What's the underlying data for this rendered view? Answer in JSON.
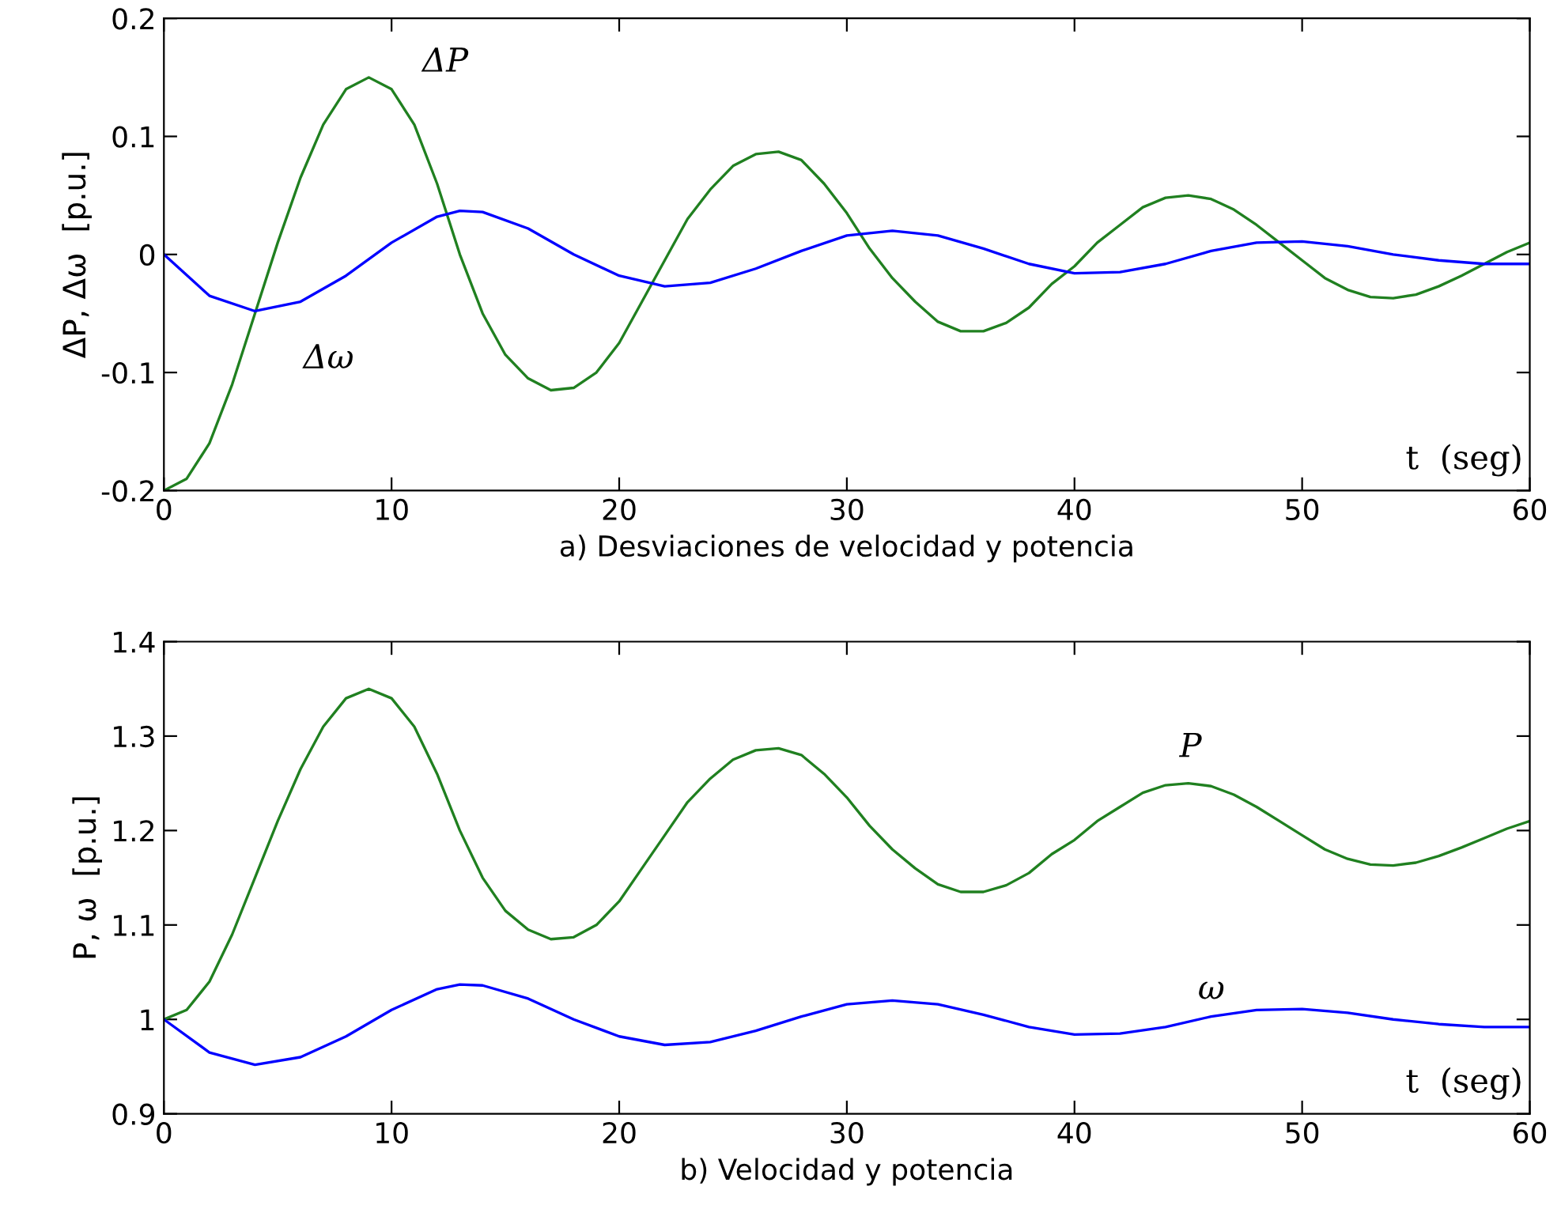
{
  "chart_data": [
    {
      "type": "line",
      "xlabel": "a) Desviaciones de velocidad y potencia",
      "ylabel": "ΔP, Δω  [p.u.]",
      "xlim": [
        0,
        60
      ],
      "ylim": [
        -0.2,
        0.2
      ],
      "xticks": [
        0,
        10,
        20,
        30,
        40,
        50,
        60
      ],
      "yticks": [
        -0.2,
        -0.1,
        0,
        0.1,
        0.2
      ],
      "grid": false,
      "legend": false,
      "series": [
        {
          "name": "ΔP",
          "color": "#208020",
          "x": [
            0,
            1,
            2,
            3,
            4,
            5,
            6,
            7,
            8,
            9,
            10,
            11,
            12,
            13,
            14,
            15,
            16,
            17,
            18,
            19,
            20,
            21,
            22,
            23,
            24,
            25,
            26,
            27,
            28,
            29,
            30,
            31,
            32,
            33,
            34,
            35,
            36,
            37,
            38,
            39,
            40,
            41,
            42,
            43,
            44,
            45,
            46,
            47,
            48,
            49,
            50,
            51,
            52,
            53,
            54,
            55,
            56,
            57,
            58,
            59,
            60
          ],
          "values": [
            -0.2,
            -0.19,
            -0.16,
            -0.11,
            -0.05,
            0.01,
            0.065,
            0.11,
            0.14,
            0.15,
            0.14,
            0.11,
            0.06,
            0.0,
            -0.05,
            -0.085,
            -0.105,
            -0.115,
            -0.113,
            -0.1,
            -0.075,
            -0.04,
            -0.005,
            0.03,
            0.055,
            0.075,
            0.085,
            0.087,
            0.08,
            0.06,
            0.035,
            0.005,
            -0.02,
            -0.04,
            -0.057,
            -0.065,
            -0.065,
            -0.058,
            -0.045,
            -0.025,
            -0.01,
            0.01,
            0.025,
            0.04,
            0.048,
            0.05,
            0.047,
            0.038,
            0.025,
            0.01,
            -0.005,
            -0.02,
            -0.03,
            -0.036,
            -0.037,
            -0.034,
            -0.027,
            -0.018,
            -0.008,
            0.002,
            0.01
          ]
        },
        {
          "name": "Δω",
          "color": "#0000ff",
          "x": [
            0,
            2,
            4,
            6,
            8,
            10,
            12,
            13,
            14,
            16,
            18,
            20,
            22,
            24,
            26,
            28,
            30,
            32,
            34,
            36,
            38,
            40,
            42,
            44,
            46,
            48,
            50,
            52,
            54,
            56,
            58,
            60
          ],
          "values": [
            0,
            -0.035,
            -0.048,
            -0.04,
            -0.018,
            0.01,
            0.032,
            0.037,
            0.036,
            0.022,
            0.0,
            -0.018,
            -0.027,
            -0.024,
            -0.012,
            0.003,
            0.016,
            0.02,
            0.016,
            0.005,
            -0.008,
            -0.016,
            -0.015,
            -0.008,
            0.003,
            0.01,
            0.011,
            0.007,
            0.0,
            -0.005,
            -0.008,
            -0.008
          ]
        }
      ],
      "annotations": [
        "t  (seg)"
      ]
    },
    {
      "type": "line",
      "xlabel": "b) Velocidad y potencia",
      "ylabel": "P, ω  [p.u.]",
      "xlim": [
        0,
        60
      ],
      "ylim": [
        0.9,
        1.4
      ],
      "xticks": [
        0,
        10,
        20,
        30,
        40,
        50,
        60
      ],
      "yticks": [
        0.9,
        1,
        1.1,
        1.2,
        1.3,
        1.4
      ],
      "grid": false,
      "legend": false,
      "series": [
        {
          "name": "P",
          "color": "#208020",
          "x": [
            0,
            1,
            2,
            3,
            4,
            5,
            6,
            7,
            8,
            9,
            10,
            11,
            12,
            13,
            14,
            15,
            16,
            17,
            18,
            19,
            20,
            21,
            22,
            23,
            24,
            25,
            26,
            27,
            28,
            29,
            30,
            31,
            32,
            33,
            34,
            35,
            36,
            37,
            38,
            39,
            40,
            41,
            42,
            43,
            44,
            45,
            46,
            47,
            48,
            49,
            50,
            51,
            52,
            53,
            54,
            55,
            56,
            57,
            58,
            59,
            60
          ],
          "values": [
            1.0,
            1.01,
            1.04,
            1.09,
            1.15,
            1.21,
            1.265,
            1.31,
            1.34,
            1.35,
            1.34,
            1.31,
            1.26,
            1.2,
            1.15,
            1.115,
            1.095,
            1.085,
            1.087,
            1.1,
            1.125,
            1.16,
            1.195,
            1.23,
            1.255,
            1.275,
            1.285,
            1.287,
            1.28,
            1.26,
            1.235,
            1.205,
            1.18,
            1.16,
            1.143,
            1.135,
            1.135,
            1.142,
            1.155,
            1.175,
            1.19,
            1.21,
            1.225,
            1.24,
            1.248,
            1.25,
            1.247,
            1.238,
            1.225,
            1.21,
            1.195,
            1.18,
            1.17,
            1.164,
            1.163,
            1.166,
            1.173,
            1.182,
            1.192,
            1.202,
            1.21
          ]
        },
        {
          "name": "ω",
          "color": "#0000ff",
          "x": [
            0,
            2,
            4,
            6,
            8,
            10,
            12,
            13,
            14,
            16,
            18,
            20,
            22,
            24,
            26,
            28,
            30,
            32,
            34,
            36,
            38,
            40,
            42,
            44,
            46,
            48,
            50,
            52,
            54,
            56,
            58,
            60
          ],
          "values": [
            1.0,
            0.965,
            0.952,
            0.96,
            0.982,
            1.01,
            1.032,
            1.037,
            1.036,
            1.022,
            1.0,
            0.982,
            0.973,
            0.976,
            0.988,
            1.003,
            1.016,
            1.02,
            1.016,
            1.005,
            0.992,
            0.984,
            0.985,
            0.992,
            1.003,
            1.01,
            1.011,
            1.007,
            1.0,
            0.995,
            0.992,
            0.992
          ]
        }
      ],
      "annotations": [
        "t  (seg)"
      ]
    }
  ]
}
